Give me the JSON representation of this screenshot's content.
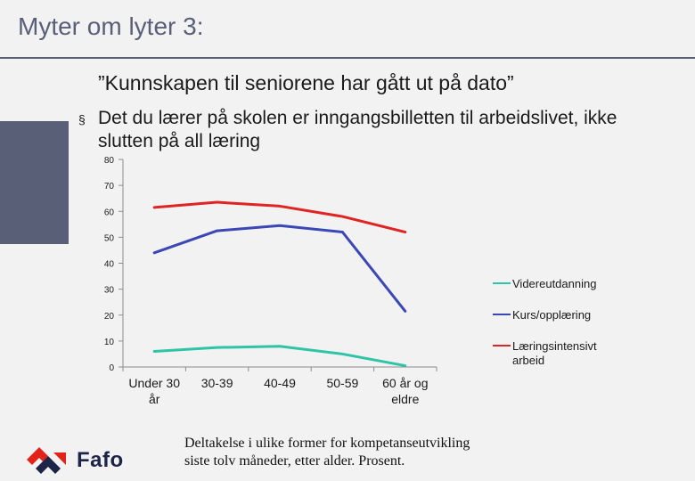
{
  "slide": {
    "title": "Myter om lyter 3:",
    "quote": "”Kunnskapen til seniorene har gått ut på dato”",
    "bullet_marker": "§",
    "bullet": "Det du lærer på skolen er inngangsbilletten til arbeidslivet, ikke slutten på all læring",
    "caption_line1": "Deltakelse i ulike former for kompetanseutvikling",
    "caption_line2": "siste tolv måneder, etter alder. Prosent.",
    "logo_text": "Fafo"
  },
  "colors": {
    "accent": "#5a5f78",
    "videreutdanning": "#2ec4a6",
    "kurs": "#3b47b5",
    "laeringsintensivt": "#e02424",
    "logo_red": "#e2231a",
    "logo_navy": "#1e2447"
  },
  "chart_data": {
    "type": "line",
    "categories": [
      [
        "Under 30",
        "år"
      ],
      [
        "30-39"
      ],
      [
        "40-49"
      ],
      [
        "50-59"
      ],
      [
        "60 år og",
        "eldre"
      ]
    ],
    "ylim": [
      0,
      80
    ],
    "yticks": [
      0,
      10,
      20,
      30,
      40,
      50,
      60,
      70,
      80
    ],
    "grid": false,
    "legend_position": "right",
    "series": [
      {
        "name": "Videreutdanning",
        "color": "#2ec4a6",
        "values": [
          6,
          7.5,
          8,
          5,
          0.5
        ]
      },
      {
        "name": "Kurs/opplæring",
        "color": "#3b47b5",
        "values": [
          44,
          52.5,
          54.5,
          52,
          21.5
        ]
      },
      {
        "name": "Læringsintensivt arbeid",
        "legend_lines": [
          "Læringsintensivt",
          "arbeid"
        ],
        "color": "#e02424",
        "values": [
          61.5,
          63.5,
          62,
          58,
          52
        ]
      }
    ]
  }
}
